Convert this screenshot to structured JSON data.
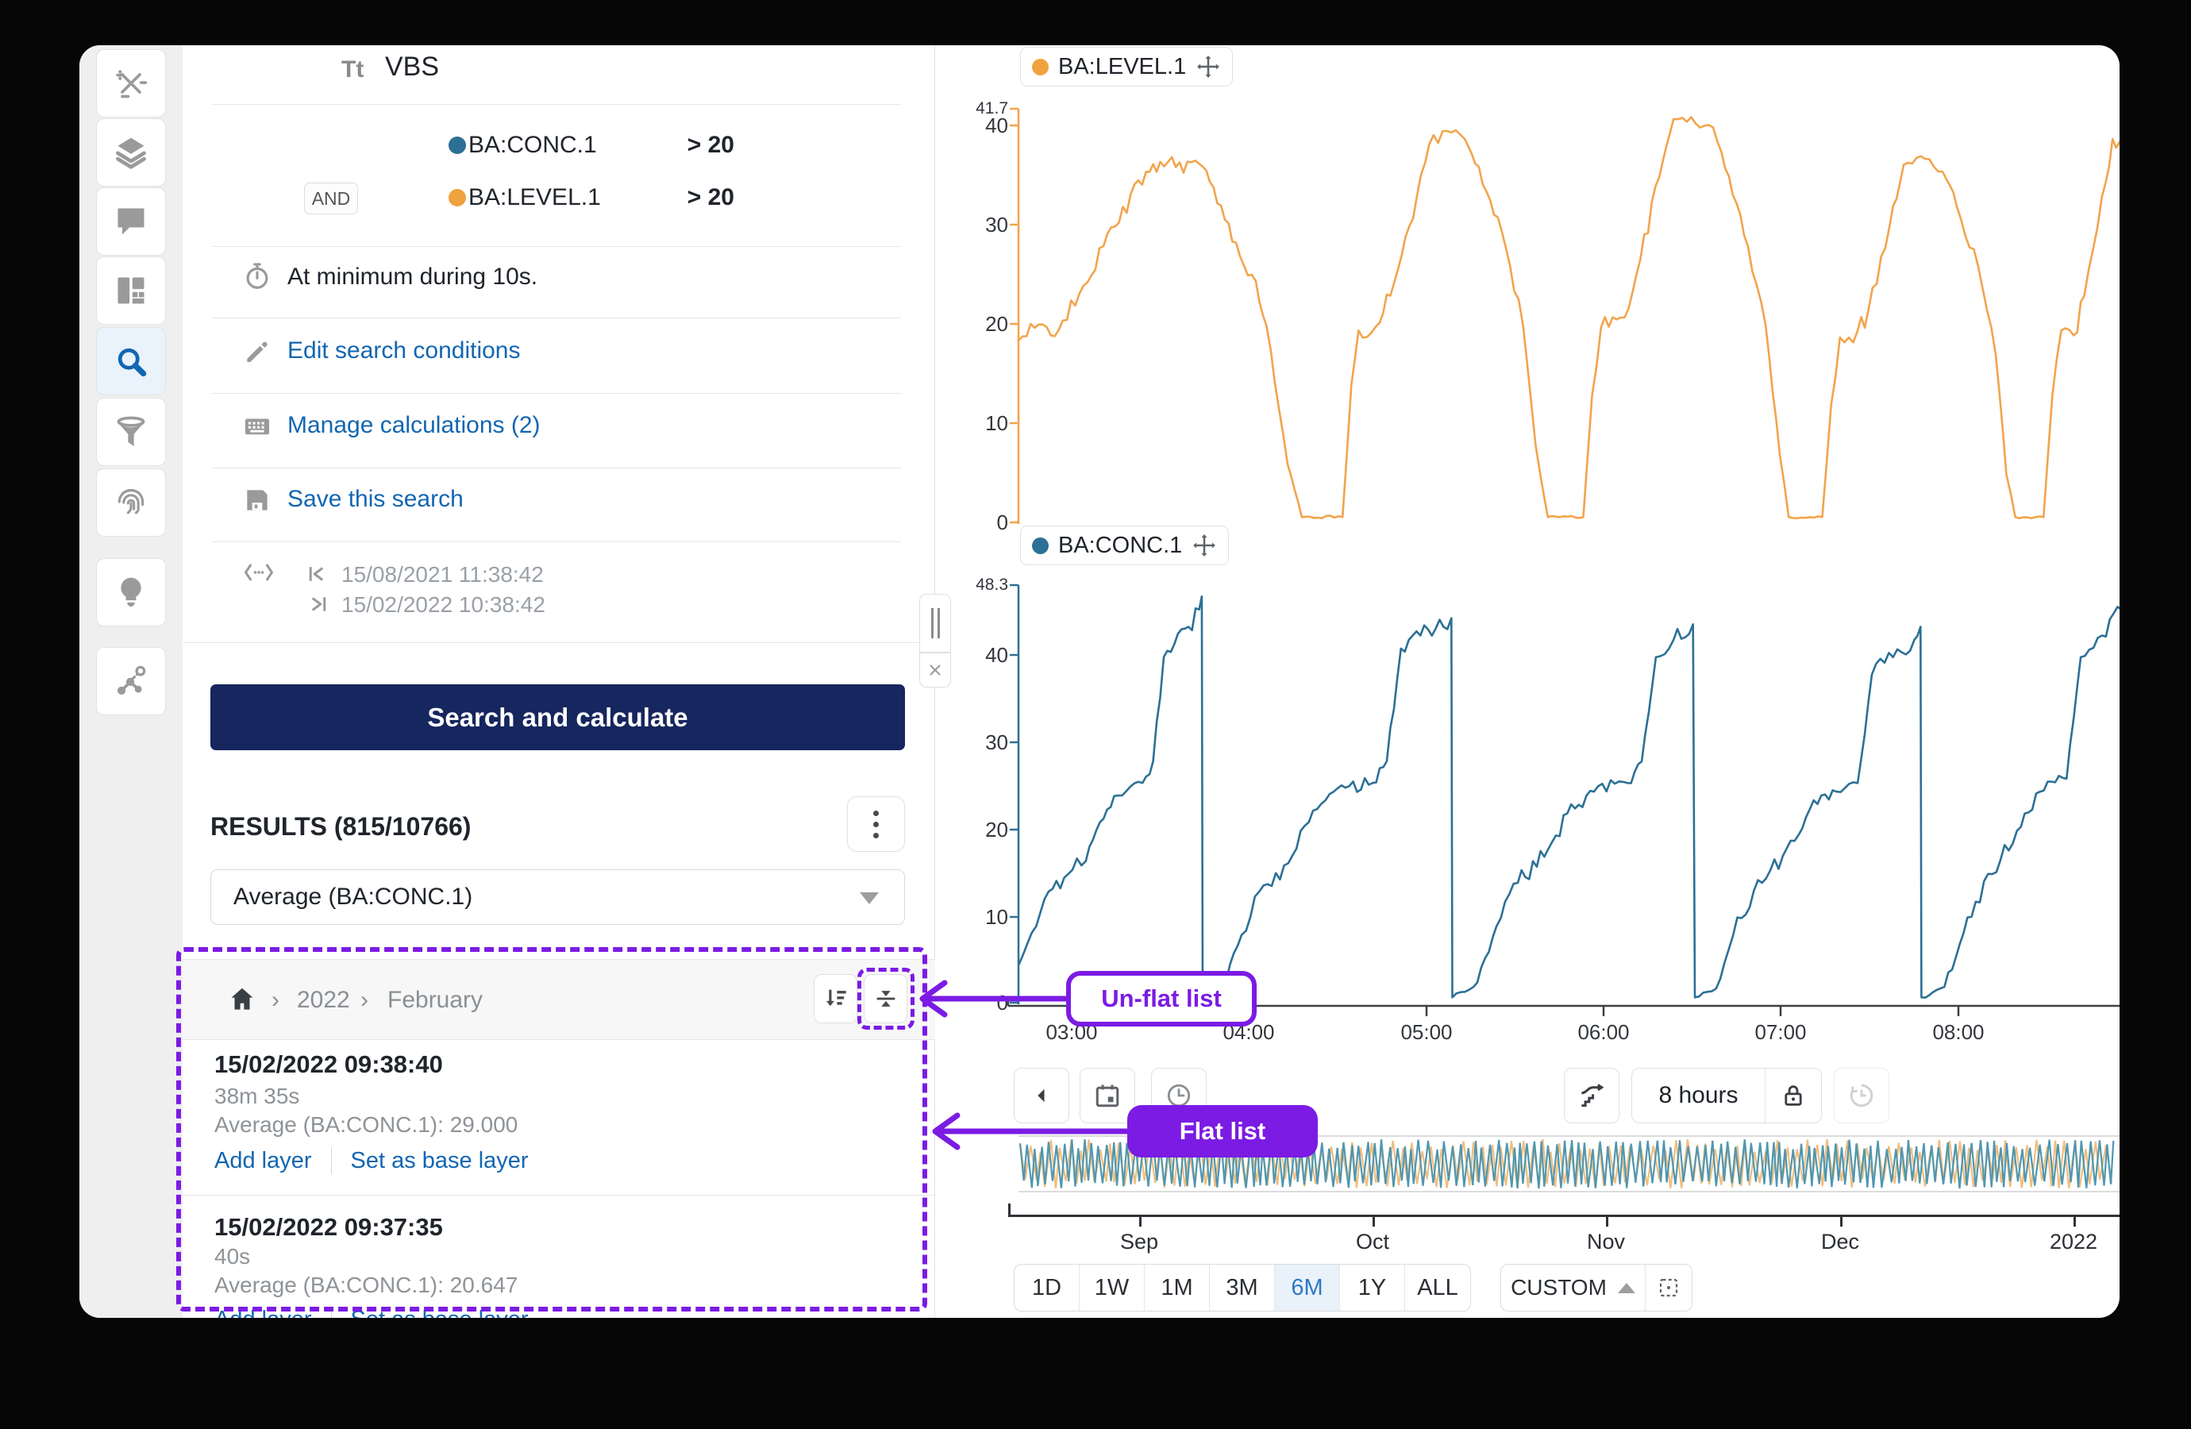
{
  "icons": {
    "title_type": "Tt"
  },
  "panel": {
    "title": "VBS",
    "join_label": "AND",
    "conditions": [
      {
        "tag": "BA:CONC.1",
        "operator": "> 20"
      },
      {
        "tag": "BA:LEVEL.1",
        "operator": "> 20"
      }
    ],
    "duration_text": "At minimum during 10s.",
    "links": {
      "edit": "Edit search conditions",
      "manage": "Manage calculations (2)",
      "save": "Save this search"
    },
    "date_from": "15/08/2021 11:38:42",
    "date_to": "15/02/2022 10:38:42",
    "search_button": "Search and calculate",
    "results_title": "RESULTS (815/10766)",
    "aggregate_dropdown": "Average (BA:CONC.1)",
    "breadcrumb_sep": "›",
    "breadcrumb": [
      "2022",
      "February"
    ],
    "results": [
      {
        "title": "15/02/2022 09:38:40",
        "duration": "38m 35s",
        "average": "Average (BA:CONC.1): 29.000",
        "action_add": "Add layer",
        "action_base": "Set as base layer"
      },
      {
        "title": "15/02/2022 09:37:35",
        "duration": "40s",
        "average": "Average (BA:CONC.1): 20.647",
        "action_add": "Add layer",
        "action_base": "Set as base layer"
      }
    ]
  },
  "toolbar": {
    "window_label": "8 hours"
  },
  "timebar": {
    "months": [
      "Sep",
      "Oct",
      "Nov",
      "Dec",
      "2022"
    ],
    "ranges": [
      "1D",
      "1W",
      "1M",
      "3M",
      "6M",
      "1Y",
      "ALL"
    ],
    "active_range": "6M",
    "custom_label": "CUSTOM"
  },
  "annotations": {
    "unflat_label": "Un-flat list",
    "flat_label": "Flat list",
    "color": "#7B1BE4"
  },
  "colors": {
    "accent_blue": "#1266B2",
    "navy": "#16265E",
    "series_orange": "#F0A23F",
    "series_blue": "#2C7095"
  },
  "chart_data": [
    {
      "type": "line",
      "series": "BA:LEVEL.1",
      "color": "#F2A44C",
      "x_axis": "shared time axis 03:00–08:00 (hours after 03:00)",
      "xlim": [
        -0.3,
        5.92
      ],
      "ylim": [
        0,
        41.7
      ],
      "y_tick_labels": [
        "41.7",
        "40",
        "30",
        "20",
        "10",
        "0"
      ],
      "anchors": [
        [
          -0.3,
          18.5,
          1.5
        ],
        [
          -0.05,
          20.5,
          1.5
        ],
        [
          0.02,
          22,
          0.8
        ],
        [
          0.18,
          28,
          1.0
        ],
        [
          0.42,
          35.5,
          0.8
        ],
        [
          0.5,
          36.5,
          1.1
        ],
        [
          0.72,
          36.3,
          1.1
        ],
        [
          0.78,
          34.5,
          0.6
        ],
        [
          0.95,
          27,
          0.7
        ],
        [
          1.04,
          24.5,
          0.9
        ],
        [
          1.1,
          20,
          0.5
        ],
        [
          1.22,
          6,
          0.4
        ],
        [
          1.3,
          0.7,
          0.15
        ],
        [
          1.53,
          0.7,
          0.15
        ],
        [
          1.58,
          14,
          0.5
        ],
        [
          1.62,
          19.5,
          0.8
        ],
        [
          1.74,
          20.3,
          1.5
        ],
        [
          1.8,
          23,
          0.8
        ],
        [
          1.95,
          33,
          1.0
        ],
        [
          2.02,
          38.3,
          0.9
        ],
        [
          2.12,
          39.6,
          1.0
        ],
        [
          2.22,
          38.8,
          1.0
        ],
        [
          2.3,
          36,
          0.7
        ],
        [
          2.45,
          28,
          0.7
        ],
        [
          2.55,
          20,
          0.8
        ],
        [
          2.62,
          8,
          0.4
        ],
        [
          2.69,
          0.7,
          0.15
        ],
        [
          2.89,
          0.7,
          0.15
        ],
        [
          2.94,
          13,
          0.5
        ],
        [
          2.99,
          19.8,
          0.8
        ],
        [
          3.1,
          20.8,
          1.5
        ],
        [
          3.17,
          23.5,
          0.8
        ],
        [
          3.32,
          35,
          1.0
        ],
        [
          3.4,
          40.8,
          0.8
        ],
        [
          3.5,
          41.0,
          0.9
        ],
        [
          3.6,
          40.2,
          0.9
        ],
        [
          3.67,
          37.5,
          0.6
        ],
        [
          3.82,
          28,
          0.7
        ],
        [
          3.92,
          20,
          0.7
        ],
        [
          4.0,
          7,
          0.4
        ],
        [
          4.05,
          0.7,
          0.15
        ],
        [
          4.24,
          0.7,
          0.15
        ],
        [
          4.29,
          12,
          0.5
        ],
        [
          4.34,
          18.8,
          0.9
        ],
        [
          4.44,
          19.5,
          1.6
        ],
        [
          4.5,
          21.5,
          0.8
        ],
        [
          4.62,
          30,
          1.0
        ],
        [
          4.7,
          36.2,
          0.9
        ],
        [
          4.82,
          36.8,
          1.0
        ],
        [
          4.92,
          35.5,
          0.8
        ],
        [
          5.0,
          32,
          0.7
        ],
        [
          5.12,
          26,
          0.7
        ],
        [
          5.22,
          17,
          0.8
        ],
        [
          5.28,
          5,
          0.4
        ],
        [
          5.33,
          0.7,
          0.15
        ],
        [
          5.49,
          0.7,
          0.15
        ],
        [
          5.54,
          13,
          0.5
        ],
        [
          5.59,
          19.5,
          0.9
        ],
        [
          5.66,
          19.0,
          1.6
        ],
        [
          5.72,
          23,
          0.8
        ],
        [
          5.82,
          33,
          1.0
        ],
        [
          5.88,
          38.8,
          1.0
        ],
        [
          5.96,
          37.5,
          1.0
        ]
      ]
    },
    {
      "type": "line",
      "series": "BA:CONC.1",
      "color": "#2C7095",
      "x_tick_labels": [
        "03:00",
        "04:00",
        "05:00",
        "06:00",
        "07:00",
        "08:00"
      ],
      "xlim": [
        -0.3,
        5.92
      ],
      "ylim": [
        0,
        48.3
      ],
      "y_tick_labels": [
        "48.3",
        "40",
        "30",
        "20",
        "10",
        "0"
      ],
      "anchors": [
        [
          -0.3,
          4.5,
          0.5
        ],
        [
          -0.2,
          9,
          0.7
        ],
        [
          -0.13,
          13,
          0.9
        ],
        [
          -0.02,
          15,
          1.4
        ],
        [
          0.08,
          16.5,
          1.2
        ],
        [
          0.16,
          21,
          0.9
        ],
        [
          0.24,
          24,
          0.8
        ],
        [
          0.4,
          25.5,
          1.0
        ],
        [
          0.46,
          28,
          0.6
        ],
        [
          0.52,
          40,
          1.0
        ],
        [
          0.58,
          41.5,
          1.3
        ],
        [
          0.66,
          43.5,
          1.4
        ],
        [
          0.72,
          45.5,
          1.2
        ],
        [
          0.735,
          47,
          0.5
        ],
        [
          0.74,
          0.8,
          0.2
        ],
        [
          0.85,
          1.8,
          0.4
        ],
        [
          0.96,
          8,
          0.9
        ],
        [
          1.06,
          13,
          1.1
        ],
        [
          1.2,
          16,
          1.4
        ],
        [
          1.34,
          21,
          0.9
        ],
        [
          1.48,
          24.5,
          1.0
        ],
        [
          1.7,
          25.5,
          1.0
        ],
        [
          1.78,
          28,
          0.6
        ],
        [
          1.86,
          41,
          1.0
        ],
        [
          1.97,
          42.5,
          1.3
        ],
        [
          2.1,
          43.5,
          1.3
        ],
        [
          2.145,
          44.5,
          0.8
        ],
        [
          2.15,
          0.8,
          0.2
        ],
        [
          2.27,
          2,
          0.5
        ],
        [
          2.4,
          9,
          1.0
        ],
        [
          2.52,
          14,
          1.2
        ],
        [
          2.67,
          17,
          1.3
        ],
        [
          2.8,
          22,
          0.9
        ],
        [
          2.95,
          24.5,
          0.9
        ],
        [
          3.14,
          25.5,
          1.0
        ],
        [
          3.22,
          28,
          0.6
        ],
        [
          3.3,
          40,
          1.0
        ],
        [
          3.4,
          42,
          1.2
        ],
        [
          3.51,
          43.8,
          1.0
        ],
        [
          3.52,
          0.8,
          0.2
        ],
        [
          3.64,
          1.8,
          0.4
        ],
        [
          3.76,
          10,
          1.0
        ],
        [
          3.9,
          14,
          1.3
        ],
        [
          4.04,
          18,
          1.1
        ],
        [
          4.17,
          22.5,
          0.9
        ],
        [
          4.32,
          24.5,
          1.0
        ],
        [
          4.44,
          25.5,
          0.9
        ],
        [
          4.52,
          38,
          1.0
        ],
        [
          4.64,
          40,
          1.3
        ],
        [
          4.76,
          42,
          1.2
        ],
        [
          4.795,
          43.5,
          0.8
        ],
        [
          4.8,
          0.8,
          0.2
        ],
        [
          4.93,
          2,
          0.5
        ],
        [
          5.06,
          10,
          1.0
        ],
        [
          5.2,
          15,
          1.2
        ],
        [
          5.34,
          20,
          1.0
        ],
        [
          5.47,
          24.5,
          0.9
        ],
        [
          5.62,
          26,
          0.8
        ],
        [
          5.7,
          40,
          1.1
        ],
        [
          5.82,
          42.5,
          1.3
        ],
        [
          5.93,
          45.5,
          0.9
        ]
      ]
    },
    {
      "type": "line",
      "series": "overview (both tags, Aug 2021 – Feb 2022)",
      "description": "dense full-range oscillations of BA:CONC.1 (teal) and BA:LEVEL.1 (orange)"
    }
  ]
}
